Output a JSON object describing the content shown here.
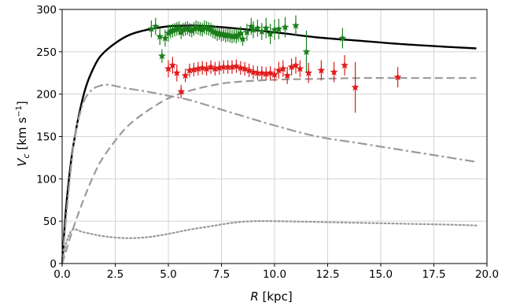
{
  "chart_data": {
    "type": "scatter",
    "xlabel": "R [kpc]",
    "ylabel": "V_c [km s^-1]",
    "xlim": [
      0,
      20
    ],
    "ylim": [
      0,
      300
    ],
    "xticks": [
      0,
      2.5,
      5,
      7.5,
      10,
      12.5,
      15,
      17.5,
      20
    ],
    "xtick_labels": [
      "0.0",
      "2.5",
      "5.0",
      "7.5",
      "10.0",
      "12.5",
      "15.0",
      "17.5",
      "20.0"
    ],
    "yticks": [
      0,
      50,
      100,
      150,
      200,
      250,
      300
    ],
    "ytick_labels": [
      "0",
      "50",
      "100",
      "150",
      "200",
      "250",
      "300"
    ],
    "grid": true,
    "legend": "none",
    "colors": {
      "total": "#000000",
      "components": "#9a9a9a",
      "green_data": "#1a7f1a",
      "red_data": "#e01b1b"
    },
    "curves": [
      {
        "style": "solid",
        "color": "#000000",
        "x": [
          0,
          0.2,
          0.5,
          1.0,
          1.5,
          2.0,
          3.0,
          4.0,
          5.0,
          6.0,
          7.0,
          8.0,
          10.0,
          12.0,
          14.0,
          16.0,
          18.0,
          19.5
        ],
        "y": [
          0,
          70,
          135,
          198,
          232,
          250,
          268,
          276,
          280,
          281,
          280,
          278,
          273,
          267,
          263,
          259,
          256,
          254
        ]
      },
      {
        "style": "dashdot",
        "color": "#9a9a9a",
        "x": [
          0,
          0.3,
          0.6,
          1.0,
          1.4,
          1.8,
          2.2,
          3.0,
          4.0,
          5.0,
          6.0,
          8.0,
          10.0,
          12.0,
          14.0,
          16.0,
          18.0,
          19.5
        ],
        "y": [
          0,
          85,
          150,
          190,
          205,
          210,
          211,
          207,
          203,
          198,
          193,
          178,
          163,
          150,
          142,
          134,
          126,
          120
        ]
      },
      {
        "style": "dashed",
        "color": "#9a9a9a",
        "x": [
          0,
          0.5,
          1.0,
          1.5,
          2.0,
          3.0,
          4.0,
          5.0,
          6.0,
          7.0,
          8.0,
          10.0,
          12.0,
          14.0,
          16.0,
          18.0,
          19.5
        ],
        "y": [
          0,
          40,
          75,
          105,
          128,
          160,
          180,
          195,
          204,
          210,
          214,
          217,
          218,
          219,
          219,
          219,
          219
        ]
      },
      {
        "style": "dotted",
        "color": "#9a9a9a",
        "x": [
          0,
          0.2,
          0.5,
          1.0,
          2.0,
          3.0,
          4.0,
          5.0,
          6.0,
          7.0,
          8.0,
          9.0,
          10.0,
          12.0,
          14.0,
          16.0,
          18.0,
          19.5
        ],
        "y": [
          0,
          25,
          40,
          37,
          32,
          30,
          31,
          35,
          40,
          44,
          48,
          50,
          50,
          49,
          48,
          47,
          46,
          45
        ]
      }
    ],
    "series": [
      {
        "color": "#1a7f1a",
        "marker": "star",
        "x": [
          4.2,
          4.4,
          4.6,
          4.7,
          4.85,
          5.0,
          5.1,
          5.2,
          5.3,
          5.4,
          5.5,
          5.6,
          5.7,
          5.8,
          5.9,
          6.0,
          6.1,
          6.2,
          6.3,
          6.4,
          6.5,
          6.6,
          6.7,
          6.8,
          6.9,
          7.0,
          7.1,
          7.2,
          7.3,
          7.4,
          7.5,
          7.6,
          7.7,
          7.8,
          7.9,
          8.0,
          8.1,
          8.2,
          8.3,
          8.4,
          8.5,
          8.7,
          8.9,
          9.0,
          9.2,
          9.4,
          9.6,
          9.8,
          10.0,
          10.2,
          10.5,
          11.0,
          11.5,
          13.2
        ],
        "y": [
          277,
          280,
          268,
          245,
          266,
          272,
          274,
          275,
          276,
          277,
          278,
          273,
          276,
          277,
          278,
          276,
          275,
          277,
          279,
          278,
          277,
          276,
          279,
          278,
          277,
          276,
          274,
          273,
          271,
          272,
          270,
          271,
          269,
          270,
          269,
          268,
          269,
          268,
          270,
          272,
          265,
          273,
          280,
          276,
          278,
          274,
          278,
          271,
          276,
          277,
          279,
          281,
          250,
          266
        ],
        "yerr": [
          10,
          10,
          10,
          8,
          10,
          10,
          8,
          8,
          8,
          8,
          8,
          8,
          8,
          8,
          8,
          8,
          8,
          8,
          8,
          8,
          8,
          8,
          8,
          8,
          8,
          8,
          8,
          8,
          8,
          8,
          8,
          8,
          8,
          8,
          8,
          8,
          8,
          8,
          8,
          8,
          8,
          10,
          10,
          10,
          10,
          10,
          12,
          12,
          12,
          12,
          12,
          12,
          25,
          12
        ]
      },
      {
        "color": "#e01b1b",
        "marker": "star",
        "x": [
          5.0,
          5.2,
          5.4,
          5.6,
          5.8,
          6.0,
          6.2,
          6.4,
          6.6,
          6.8,
          7.0,
          7.2,
          7.4,
          7.6,
          7.8,
          8.0,
          8.2,
          8.4,
          8.6,
          8.8,
          9.0,
          9.2,
          9.4,
          9.6,
          9.8,
          10.0,
          10.2,
          10.4,
          10.6,
          10.8,
          11.0,
          11.2,
          11.6,
          12.2,
          12.8,
          13.3,
          13.8,
          15.8
        ],
        "y": [
          230,
          234,
          225,
          203,
          222,
          228,
          229,
          230,
          231,
          230,
          232,
          230,
          231,
          232,
          232,
          232,
          233,
          231,
          230,
          228,
          226,
          225,
          225,
          224,
          225,
          223,
          228,
          230,
          222,
          232,
          234,
          230,
          225,
          228,
          226,
          234,
          208,
          220
        ],
        "yerr": [
          10,
          10,
          10,
          8,
          8,
          8,
          8,
          8,
          8,
          8,
          8,
          8,
          8,
          8,
          8,
          8,
          8,
          8,
          8,
          8,
          8,
          8,
          8,
          8,
          8,
          8,
          10,
          10,
          10,
          10,
          10,
          10,
          12,
          12,
          12,
          12,
          30,
          12
        ]
      }
    ]
  }
}
